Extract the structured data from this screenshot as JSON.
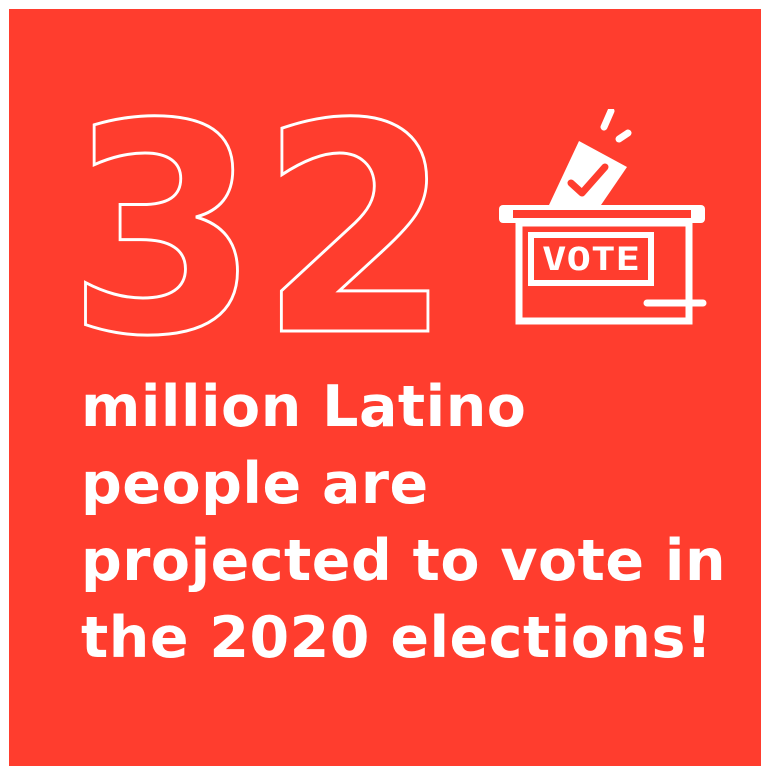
{
  "graphic": {
    "number": "32",
    "ballot_label": "VOTE",
    "headline_lines": [
      "million Latino",
      "people are",
      "projected to vote in",
      "the 2020 elections!"
    ]
  },
  "colors": {
    "background": "#ff3d2e",
    "foreground": "#ffffff",
    "page": "#ffffff"
  },
  "icons": [
    "ballot-box-icon",
    "ballot-paper-icon",
    "checkmark-icon"
  ]
}
